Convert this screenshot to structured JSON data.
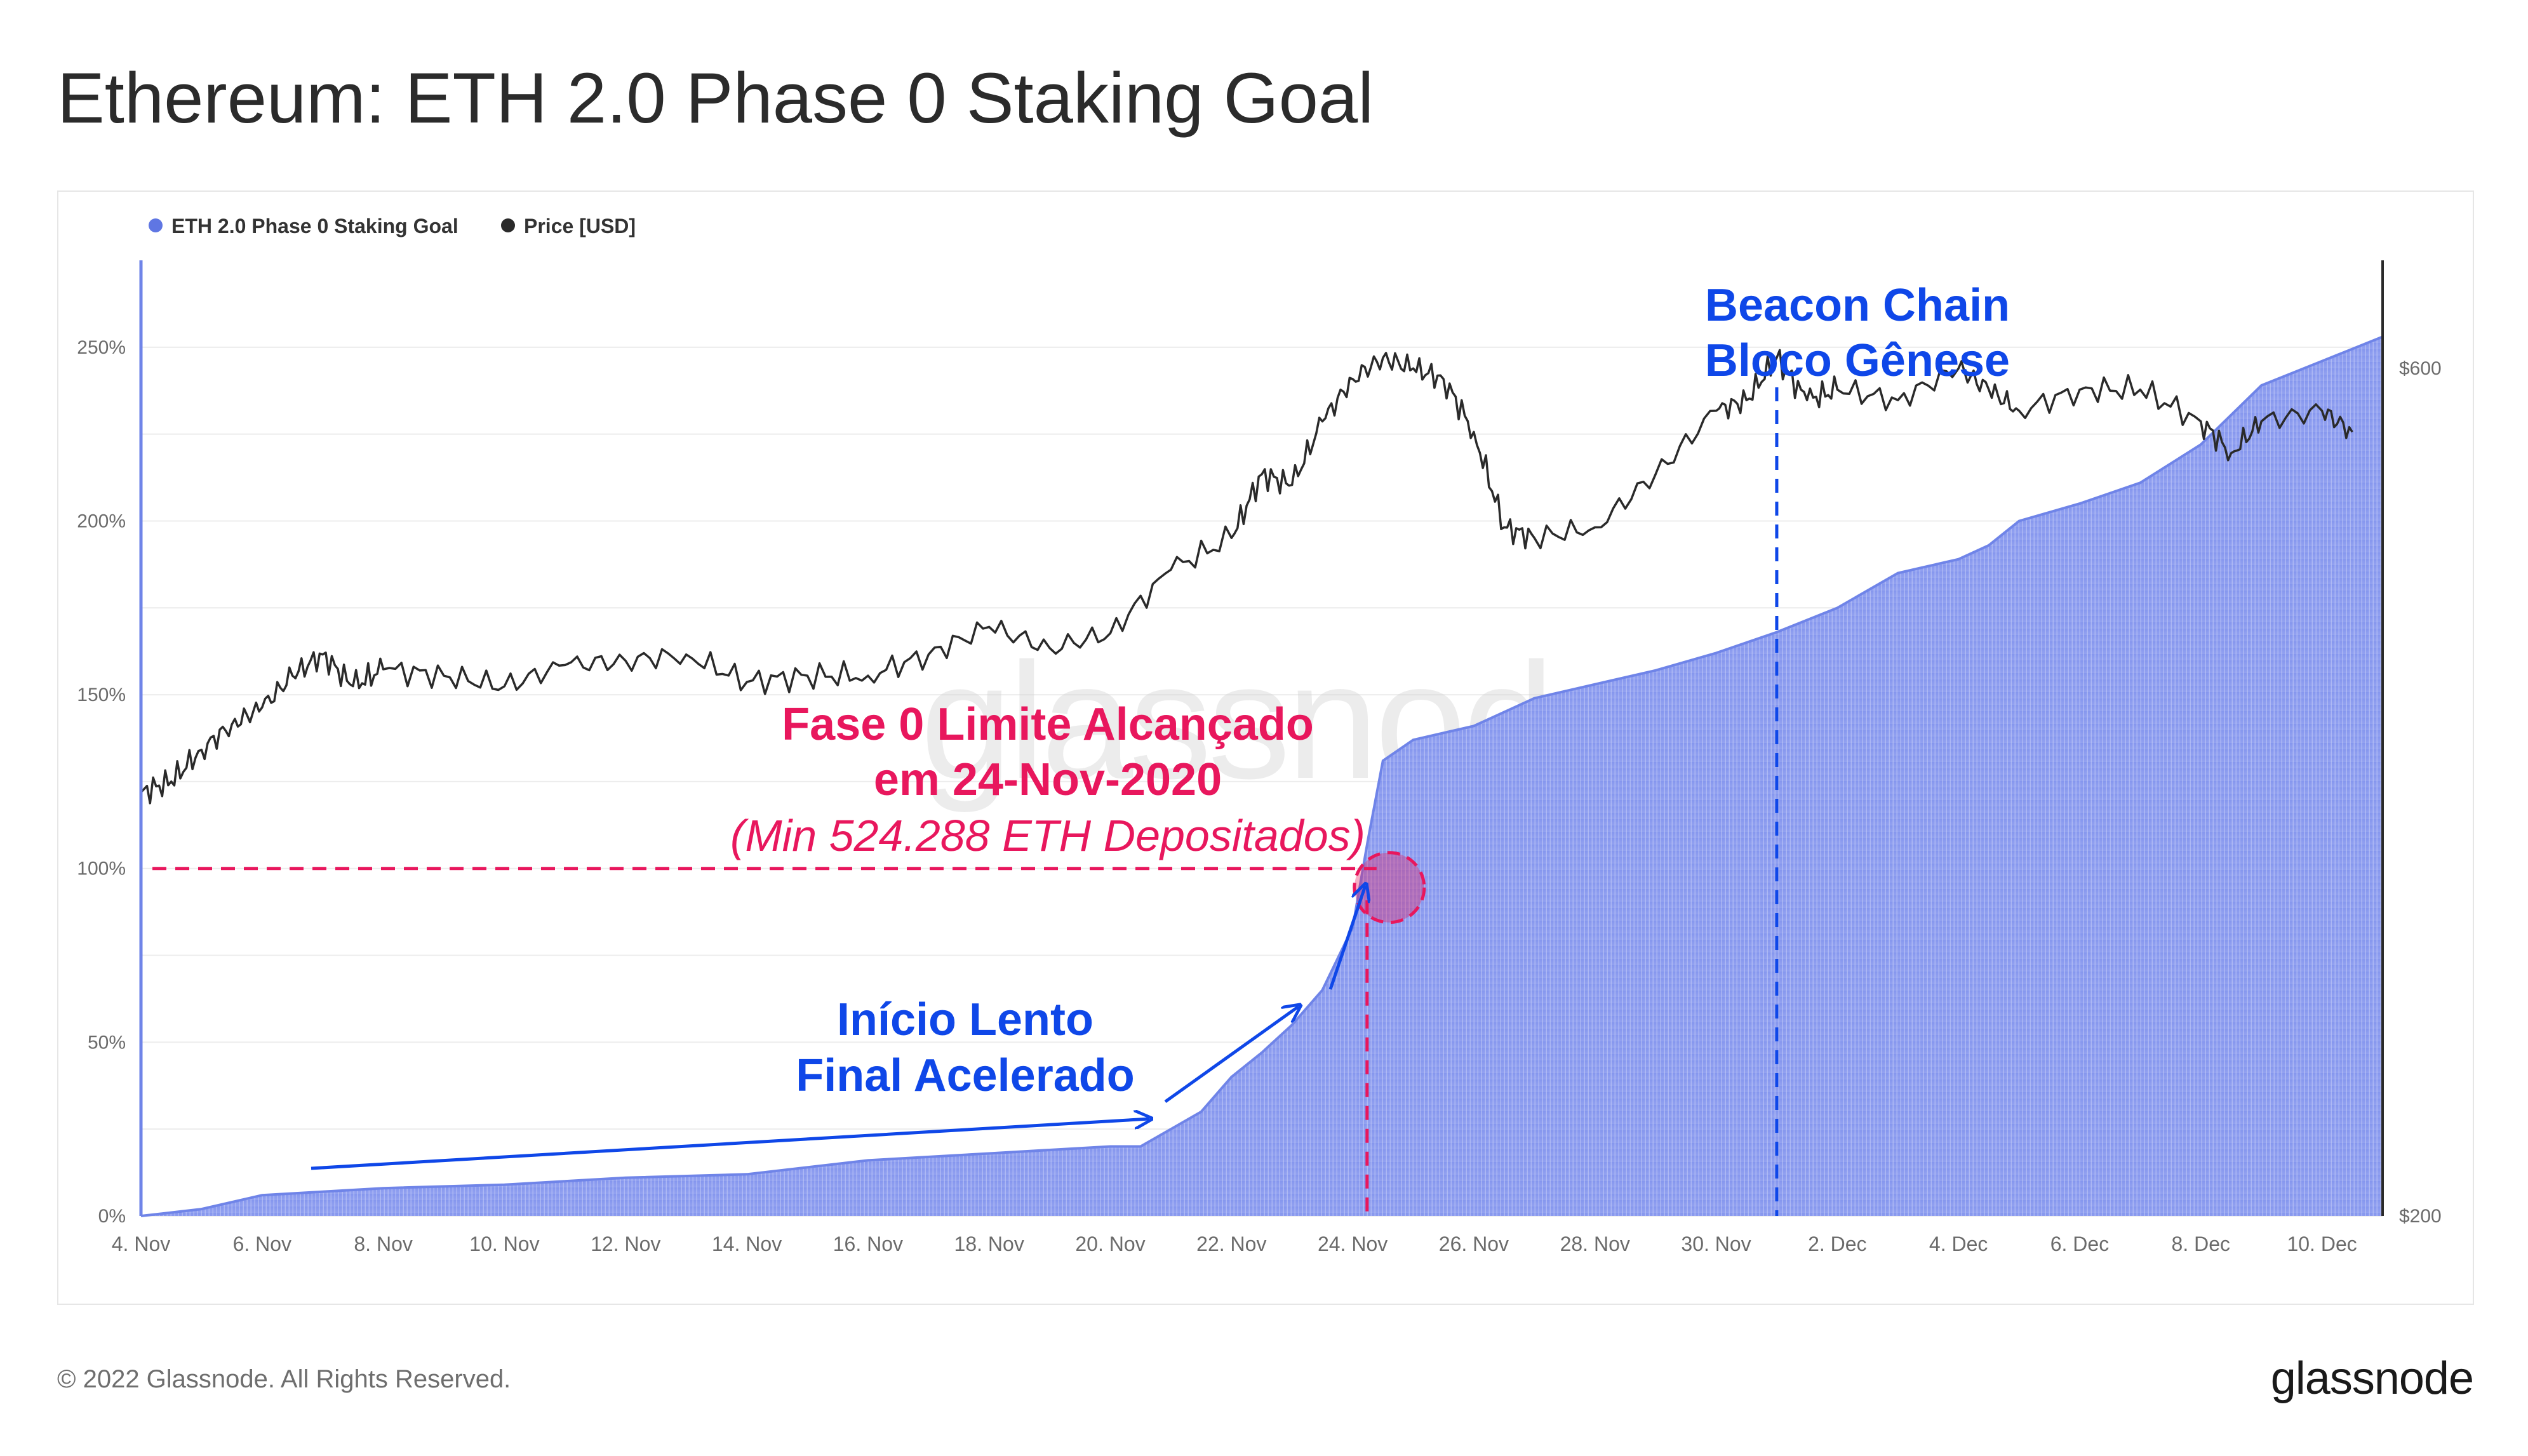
{
  "header": {
    "title": "Ethereum: ETH 2.0 Phase 0 Staking Goal"
  },
  "footer": {
    "copyright": "© 2022 Glassnode. All Rights Reserved.",
    "logo": "glassnode"
  },
  "watermark": "glassnode",
  "colors": {
    "staking": "#7B8EEA",
    "staking_edge": "#5f76e3",
    "price": "#2a2a2a",
    "annotation_red": "#E8175D",
    "annotation_blue": "#0F47E8",
    "grid": "#ececec",
    "axis_text": "#6b6b6b"
  },
  "legend": {
    "items": [
      {
        "label": "ETH 2.0 Phase 0 Staking Goal",
        "color": "#5F76E3"
      },
      {
        "label": "Price [USD]",
        "color": "#2a2a2a"
      }
    ]
  },
  "annotations": {
    "genesis_line1": "Beacon Chain",
    "genesis_line2": "Bloco Gênese",
    "goal_line1": "Fase 0 Limite Alcançado",
    "goal_line2": "em 24-Nov-2020",
    "goal_line3": "(Min 524.288 ETH Depositados)",
    "slow_line1": "Início Lento",
    "slow_line2": "Final Acelerado"
  },
  "chart_data": {
    "type": "area",
    "xlim": [
      "2020-11-04",
      "2020-12-11"
    ],
    "x_tick_labels": [
      "4. Nov",
      "6. Nov",
      "8. Nov",
      "10. Nov",
      "12. Nov",
      "14. Nov",
      "16. Nov",
      "18. Nov",
      "20. Nov",
      "22. Nov",
      "24. Nov",
      "26. Nov",
      "28. Nov",
      "30. Nov",
      "2. Dec",
      "4. Dec",
      "6. Dec",
      "8. Dec",
      "10. Dec"
    ],
    "left_axis": {
      "ylim": [
        0,
        275
      ],
      "ticks": [
        0,
        50,
        100,
        150,
        200,
        250
      ],
      "tick_labels": [
        "0%",
        "50%",
        "100%",
        "150%",
        "200%",
        "250%"
      ]
    },
    "right_axis": {
      "ylim": [
        200,
        651
      ],
      "ticks": [
        200,
        600
      ],
      "tick_labels": [
        "$200",
        "$600"
      ]
    },
    "series": [
      {
        "name": "ETH 2.0 Phase 0 Staking Goal",
        "axis": "left",
        "unit": "%",
        "x": [
          "2020-11-04",
          "2020-11-05",
          "2020-11-06",
          "2020-11-07",
          "2020-11-08",
          "2020-11-10",
          "2020-11-12",
          "2020-11-14",
          "2020-11-16",
          "2020-11-18",
          "2020-11-20",
          "2020-11-20 12:00",
          "2020-11-21",
          "2020-11-21 12:00",
          "2020-11-22",
          "2020-11-22 12:00",
          "2020-11-23",
          "2020-11-23 12:00",
          "2020-11-24",
          "2020-11-24 06:00",
          "2020-11-24 12:00",
          "2020-11-25",
          "2020-11-26",
          "2020-11-27",
          "2020-11-28",
          "2020-11-29",
          "2020-11-30",
          "2020-12-01",
          "2020-12-02",
          "2020-12-03",
          "2020-12-04",
          "2020-12-04 12:00",
          "2020-12-05",
          "2020-12-06",
          "2020-12-07",
          "2020-12-08",
          "2020-12-09",
          "2020-12-10",
          "2020-12-11"
        ],
        "values": [
          0,
          2,
          6,
          7,
          8,
          9,
          11,
          12,
          16,
          18,
          20,
          20,
          25,
          30,
          40,
          47,
          55,
          65,
          83,
          108,
          131,
          137,
          141,
          149,
          153,
          157,
          162,
          168,
          175,
          185,
          189,
          193,
          200,
          205,
          211,
          222,
          239,
          246,
          253
        ]
      },
      {
        "name": "Price [USD]",
        "axis": "right",
        "unit": "USD",
        "x": [
          "2020-11-04",
          "2020-11-04 12:00",
          "2020-11-05",
          "2020-11-05 12:00",
          "2020-11-06",
          "2020-11-06 12:00",
          "2020-11-07",
          "2020-11-07 12:00",
          "2020-11-08",
          "2020-11-09",
          "2020-11-10",
          "2020-11-11",
          "2020-11-12",
          "2020-11-13",
          "2020-11-14",
          "2020-11-15",
          "2020-11-16",
          "2020-11-17",
          "2020-11-18",
          "2020-11-19",
          "2020-11-20",
          "2020-11-21",
          "2020-11-22",
          "2020-11-22 12:00",
          "2020-11-23",
          "2020-11-23 12:00",
          "2020-11-24",
          "2020-11-24 12:00",
          "2020-11-25",
          "2020-11-25 12:00",
          "2020-11-26",
          "2020-11-26 12:00",
          "2020-11-27",
          "2020-11-28",
          "2020-11-29",
          "2020-11-30",
          "2020-11-30 12:00",
          "2020-12-01",
          "2020-12-01 12:00",
          "2020-12-02",
          "2020-12-03",
          "2020-12-04",
          "2020-12-04 12:00",
          "2020-12-05",
          "2020-12-06",
          "2020-12-07",
          "2020-12-08",
          "2020-12-08 12:00",
          "2020-12-09",
          "2020-12-10",
          "2020-12-10 12:00"
        ],
        "values": [
          400,
          405,
          420,
          432,
          440,
          455,
          465,
          450,
          458,
          455,
          450,
          460,
          462,
          465,
          452,
          455,
          455,
          465,
          478,
          468,
          475,
          505,
          520,
          550,
          545,
          575,
          595,
          605,
          600,
          595,
          570,
          525,
          520,
          525,
          550,
          580,
          585,
          605,
          585,
          590,
          585,
          600,
          590,
          580,
          590,
          590,
          575,
          560,
          575,
          580,
          570
        ]
      }
    ],
    "reference_lines": {
      "goal_value": 100,
      "goal_date": "2020-11-24 12:00",
      "genesis_date": "2020-12-01"
    }
  }
}
